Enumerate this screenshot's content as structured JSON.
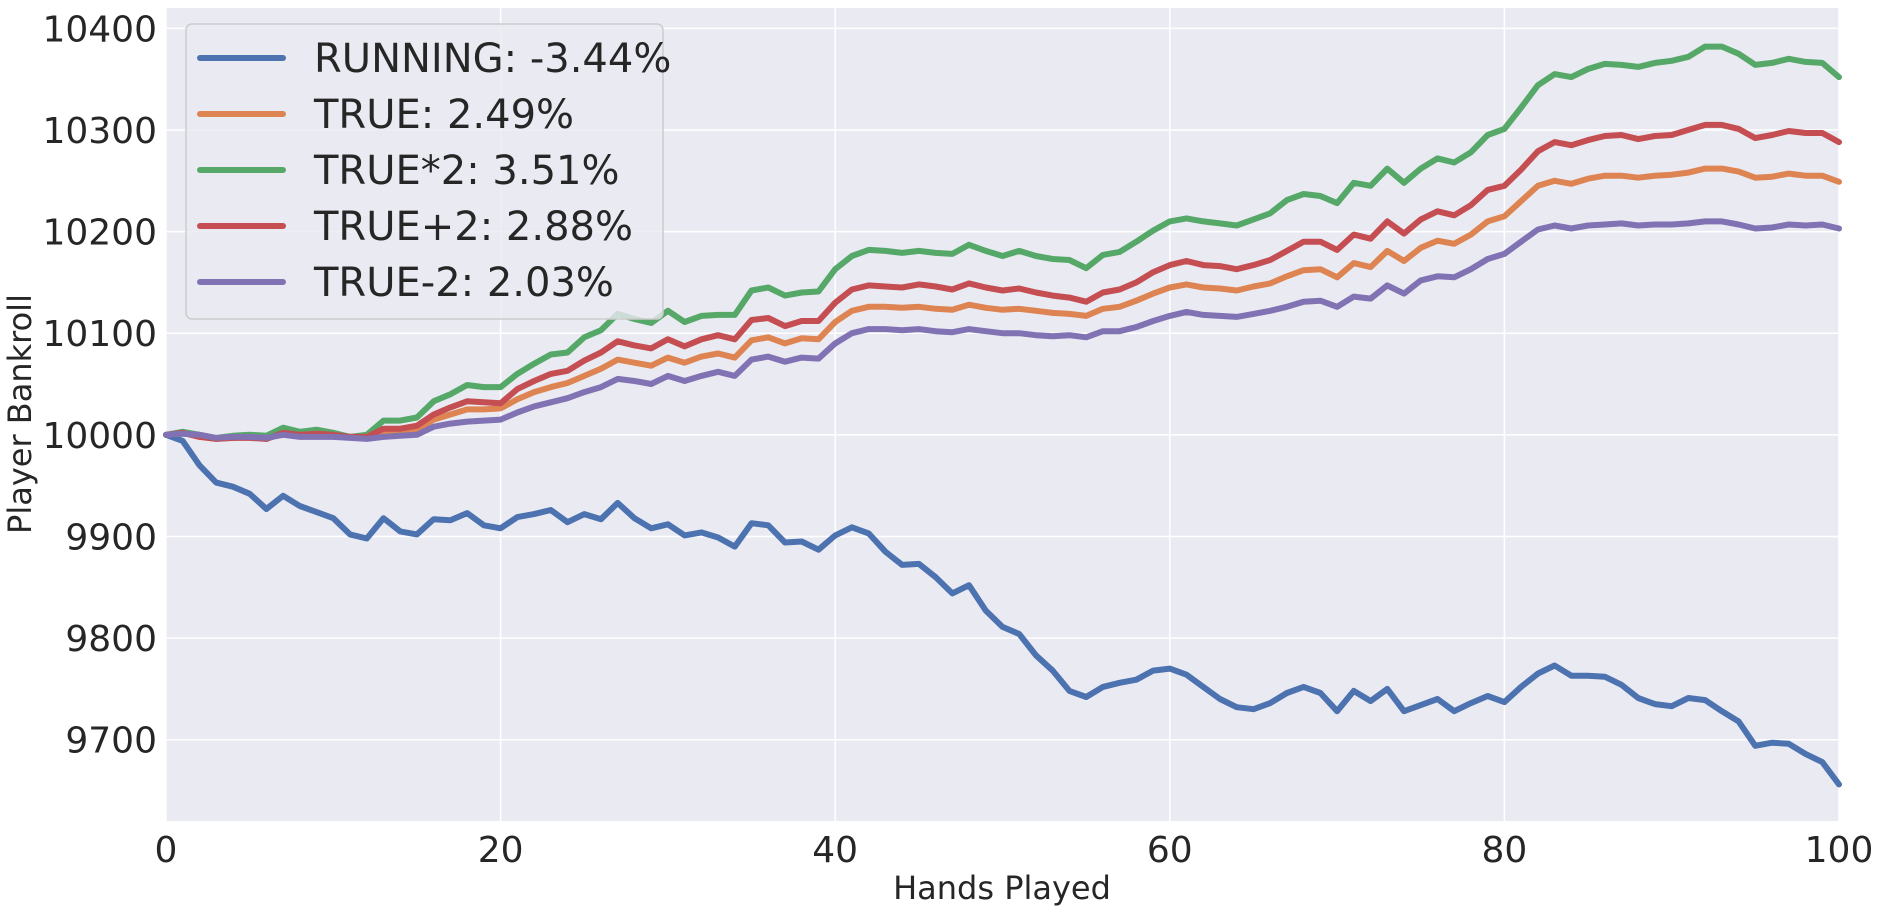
{
  "chart_data": {
    "type": "line",
    "title": "",
    "xlabel": "Hands Played",
    "ylabel": "Player Bankroll",
    "xlim": [
      0,
      100
    ],
    "ylim": [
      9620,
      10420
    ],
    "xticks": [
      0,
      20,
      40,
      60,
      80,
      100
    ],
    "xtick_labels": [
      "0",
      "20",
      "40",
      "60",
      "80",
      "100"
    ],
    "yticks": [
      9700,
      9800,
      9900,
      10000,
      10100,
      10200,
      10300,
      10400
    ],
    "ytick_labels": [
      "9700",
      "9800",
      "9900",
      "10000",
      "10100",
      "10200",
      "10300",
      "10400"
    ],
    "grid": true,
    "legend_position": "top-left",
    "x": [
      0,
      1,
      2,
      3,
      4,
      5,
      6,
      7,
      8,
      9,
      10,
      11,
      12,
      13,
      14,
      15,
      16,
      17,
      18,
      19,
      20,
      21,
      22,
      23,
      24,
      25,
      26,
      27,
      28,
      29,
      30,
      31,
      32,
      33,
      34,
      35,
      36,
      37,
      38,
      39,
      40,
      41,
      42,
      43,
      44,
      45,
      46,
      47,
      48,
      49,
      50,
      51,
      52,
      53,
      54,
      55,
      56,
      57,
      58,
      59,
      60,
      61,
      62,
      63,
      64,
      65,
      66,
      67,
      68,
      69,
      70,
      71,
      72,
      73,
      74,
      75,
      76,
      77,
      78,
      79,
      80,
      81,
      82,
      83,
      84,
      85,
      86,
      87,
      88,
      89,
      90,
      91,
      92,
      93,
      94,
      95,
      96,
      97,
      98,
      99,
      100
    ],
    "series": [
      {
        "name": "RUNNING: -3.44%",
        "color": "#4c72b0",
        "values": [
          10000,
          9994,
          9970,
          9953,
          9949,
          9942,
          9927,
          9940,
          9930,
          9924,
          9918,
          9902,
          9898,
          9918,
          9905,
          9902,
          9917,
          9916,
          9923,
          9911,
          9908,
          9919,
          9922,
          9926,
          9914,
          9922,
          9917,
          9933,
          9918,
          9908,
          9912,
          9901,
          9904,
          9899,
          9890,
          9913,
          9911,
          9894,
          9895,
          9887,
          9901,
          9909,
          9903,
          9885,
          9872,
          9873,
          9860,
          9844,
          9852,
          9827,
          9811,
          9804,
          9783,
          9768,
          9748,
          9742,
          9752,
          9756,
          9759,
          9768,
          9770,
          9764,
          9752,
          9740,
          9732,
          9730,
          9736,
          9746,
          9752,
          9746,
          9728,
          9748,
          9738,
          9750,
          9728,
          9734,
          9740,
          9728,
          9736,
          9743,
          9737,
          9752,
          9765,
          9773,
          9763,
          9763,
          9762,
          9754,
          9741,
          9735,
          9733,
          9741,
          9739,
          9728,
          9718,
          9694,
          9697,
          9696,
          9686,
          9678,
          9656
        ]
      },
      {
        "name": "TRUE: 2.49%",
        "color": "#dd8452",
        "values": [
          10000,
          10002,
          10000,
          9996,
          9997,
          9998,
          9996,
          10002,
          10000,
          10000,
          10000,
          9998,
          9997,
          10002,
          10003,
          10005,
          10015,
          10020,
          10025,
          10025,
          10026,
          10035,
          10042,
          10047,
          10051,
          10058,
          10065,
          10074,
          10071,
          10068,
          10076,
          10071,
          10077,
          10080,
          10076,
          10093,
          10096,
          10090,
          10095,
          10094,
          10111,
          10122,
          10126,
          10126,
          10125,
          10126,
          10124,
          10123,
          10128,
          10125,
          10123,
          10124,
          10122,
          10120,
          10119,
          10117,
          10124,
          10126,
          10132,
          10139,
          10145,
          10148,
          10145,
          10144,
          10142,
          10146,
          10149,
          10156,
          10162,
          10163,
          10155,
          10169,
          10165,
          10181,
          10171,
          10184,
          10191,
          10188,
          10197,
          10210,
          10215,
          10230,
          10245,
          10250,
          10247,
          10252,
          10255,
          10255,
          10253,
          10255,
          10256,
          10258,
          10262,
          10262,
          10259,
          10253,
          10254,
          10257,
          10255,
          10255,
          10249
        ]
      },
      {
        "name": "TRUE*2: 3.51%",
        "color": "#55a868",
        "values": [
          10000,
          10003,
          10000,
          9997,
          9999,
          10000,
          9999,
          10007,
          10003,
          10005,
          10002,
          9998,
          10000,
          10014,
          10014,
          10017,
          10033,
          10040,
          10049,
          10047,
          10047,
          10060,
          10070,
          10079,
          10081,
          10096,
          10103,
          10119,
          10114,
          10110,
          10122,
          10111,
          10117,
          10118,
          10118,
          10142,
          10145,
          10137,
          10140,
          10141,
          10163,
          10176,
          10182,
          10181,
          10179,
          10181,
          10179,
          10178,
          10187,
          10181,
          10176,
          10181,
          10176,
          10173,
          10172,
          10164,
          10177,
          10180,
          10190,
          10201,
          10210,
          10213,
          10210,
          10208,
          10206,
          10212,
          10218,
          10231,
          10237,
          10235,
          10228,
          10248,
          10245,
          10262,
          10248,
          10262,
          10272,
          10268,
          10278,
          10295,
          10301,
          10322,
          10344,
          10355,
          10352,
          10360,
          10365,
          10364,
          10362,
          10366,
          10368,
          10372,
          10382,
          10382,
          10375,
          10364,
          10366,
          10370,
          10367,
          10366,
          10352
        ]
      },
      {
        "name": "TRUE+2: 2.88%",
        "color": "#c44e52",
        "values": [
          10000,
          10002,
          9998,
          9996,
          9997,
          9997,
          9996,
          10002,
          10000,
          10001,
          10000,
          9998,
          9998,
          10006,
          10006,
          10009,
          10020,
          10027,
          10033,
          10032,
          10031,
          10045,
          10053,
          10060,
          10063,
          10073,
          10081,
          10092,
          10088,
          10085,
          10094,
          10087,
          10094,
          10098,
          10094,
          10113,
          10115,
          10107,
          10112,
          10112,
          10130,
          10143,
          10147,
          10146,
          10145,
          10148,
          10146,
          10143,
          10149,
          10145,
          10142,
          10144,
          10140,
          10137,
          10135,
          10131,
          10140,
          10143,
          10150,
          10160,
          10167,
          10171,
          10167,
          10166,
          10163,
          10167,
          10172,
          10181,
          10190,
          10190,
          10182,
          10197,
          10193,
          10210,
          10198,
          10212,
          10220,
          10216,
          10226,
          10241,
          10245,
          10261,
          10279,
          10288,
          10285,
          10290,
          10294,
          10295,
          10291,
          10294,
          10295,
          10300,
          10305,
          10305,
          10301,
          10292,
          10295,
          10299,
          10297,
          10297,
          10288
        ]
      },
      {
        "name": "TRUE-2: 2.03%",
        "color": "#8172b3",
        "values": [
          10000,
          10001,
          10000,
          9997,
          9998,
          9998,
          9997,
          10000,
          9998,
          9998,
          9998,
          9997,
          9996,
          9998,
          9999,
          10000,
          10008,
          10011,
          10013,
          10014,
          10015,
          10022,
          10028,
          10032,
          10036,
          10042,
          10047,
          10055,
          10053,
          10050,
          10058,
          10053,
          10058,
          10062,
          10058,
          10074,
          10077,
          10072,
          10076,
          10075,
          10090,
          10100,
          10104,
          10104,
          10103,
          10104,
          10102,
          10101,
          10104,
          10102,
          10100,
          10100,
          10098,
          10097,
          10098,
          10096,
          10102,
          10102,
          10106,
          10112,
          10117,
          10121,
          10118,
          10117,
          10116,
          10119,
          10122,
          10126,
          10131,
          10132,
          10126,
          10136,
          10134,
          10147,
          10139,
          10152,
          10156,
          10155,
          10163,
          10173,
          10178,
          10190,
          10202,
          10206,
          10203,
          10206,
          10207,
          10208,
          10206,
          10207,
          10207,
          10208,
          10210,
          10210,
          10207,
          10203,
          10204,
          10207,
          10206,
          10207,
          10203
        ]
      }
    ]
  }
}
